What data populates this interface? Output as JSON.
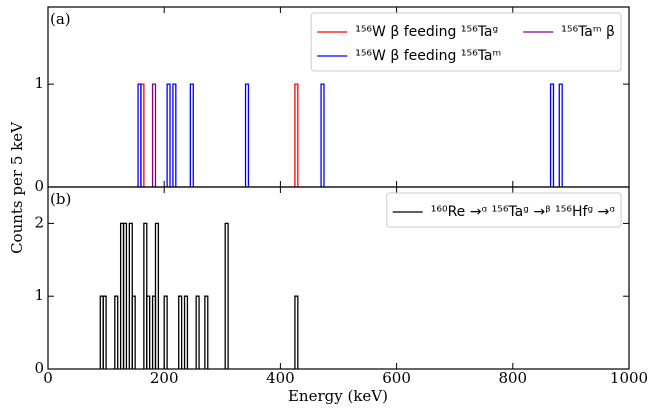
{
  "shared": {
    "xlabel": "Energy (keV)",
    "ylabel": "Counts per 5 keV"
  },
  "chart_data": [
    {
      "type": "histogram",
      "annotation": "(a)",
      "bin_width": 5,
      "xlim": [
        0,
        1000
      ],
      "xticks": [
        0,
        200,
        400,
        600,
        800,
        1000
      ],
      "xtick_labels": false,
      "ylim": [
        0,
        1.75
      ],
      "yticks": [
        0,
        1
      ],
      "legend": "upper right",
      "legend_columns": 2,
      "series": [
        {
          "name": "¹⁵⁶W β feeding ¹⁵⁶Taᵍ",
          "color": "#ff0000",
          "x": [
            160,
            425
          ],
          "values": [
            1,
            1
          ]
        },
        {
          "name": "¹⁵⁶W β feeding ¹⁵⁶Taᵐ",
          "color": "#0000ff",
          "x": [
            155,
            205,
            215,
            245,
            340,
            470,
            865,
            880
          ],
          "values": [
            1,
            1,
            1,
            1,
            1,
            1,
            1,
            1
          ]
        },
        {
          "name": "¹⁵⁶Taᵐ β",
          "color": "#800080",
          "x": [
            180
          ],
          "values": [
            1
          ]
        }
      ]
    },
    {
      "type": "histogram",
      "annotation": "(b)",
      "bin_width": 5,
      "xlim": [
        0,
        1000
      ],
      "xticks": [
        0,
        200,
        400,
        600,
        800,
        1000
      ],
      "xtick_labels": true,
      "ylim": [
        0,
        2.5
      ],
      "yticks": [
        0,
        1,
        2
      ],
      "legend": "upper right",
      "legend_columns": 1,
      "series": [
        {
          "name": "¹⁶⁰Re →ᵅ ¹⁵⁶Taᵍ →ᵝ ¹⁵⁶Hfᵍ →ᵅ",
          "color": "#000000",
          "x": [
            90,
            95,
            115,
            125,
            130,
            140,
            145,
            165,
            170,
            180,
            185,
            200,
            225,
            235,
            255,
            270,
            305,
            425
          ],
          "values": [
            1,
            1,
            1,
            2,
            2,
            2,
            1,
            2,
            1,
            1,
            2,
            1,
            1,
            1,
            1,
            1,
            2,
            1
          ]
        }
      ]
    }
  ]
}
